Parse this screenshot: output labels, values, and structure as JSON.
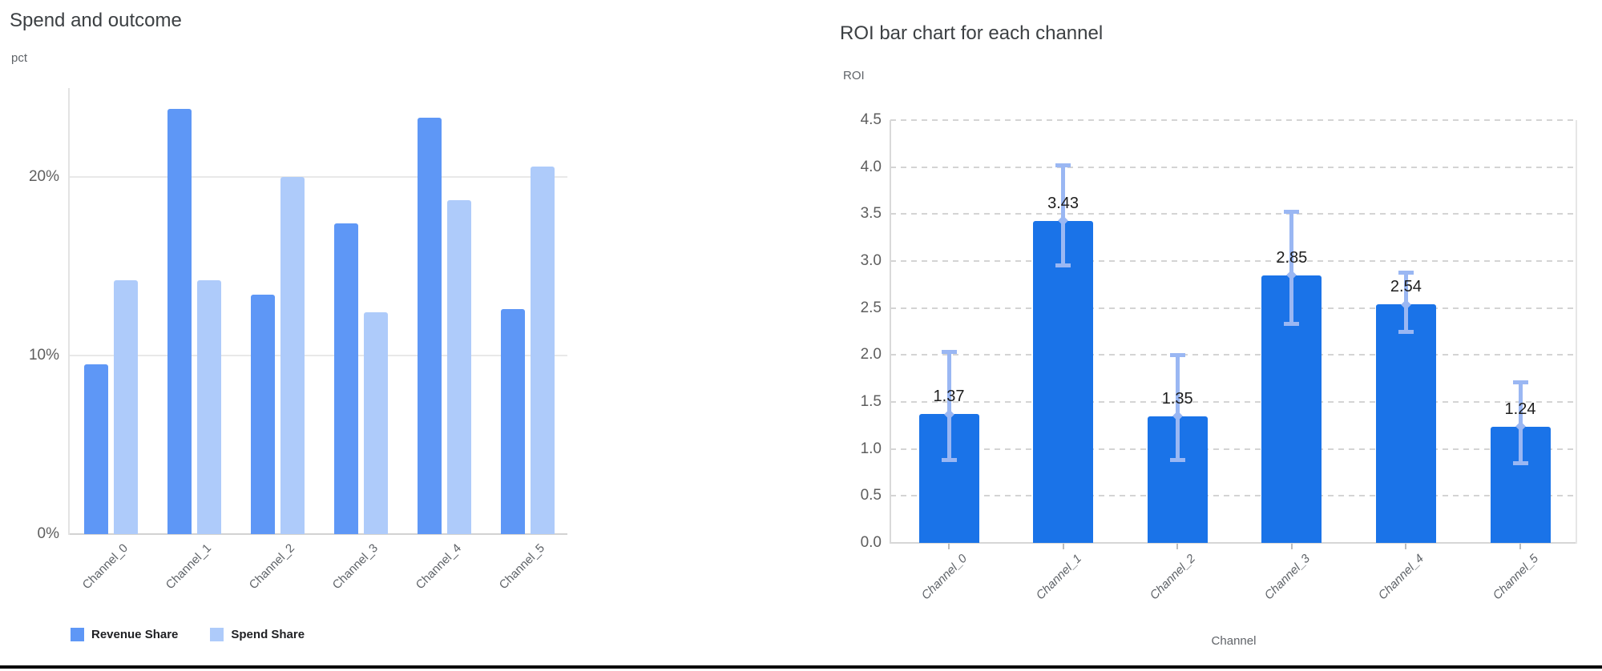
{
  "page": {
    "background": "#ffffff",
    "bottom_border_color": "#040404"
  },
  "chart_data": [
    {
      "type": "bar",
      "title": "Spend and outcome",
      "ylabel": "pct",
      "xlabel": "",
      "categories": [
        "Channel_0",
        "Channel_1",
        "Channel_2",
        "Channel_3",
        "Channel_4",
        "Channel_5"
      ],
      "series": [
        {
          "name": "Revenue Share",
          "color": "#5e97f6",
          "values": [
            9.5,
            23.8,
            13.4,
            17.4,
            23.3,
            12.6
          ]
        },
        {
          "name": "Spend Share",
          "color": "#aecbfa",
          "values": [
            14.2,
            14.2,
            20.0,
            12.4,
            18.7,
            20.6
          ]
        }
      ],
      "y_ticks": [
        0,
        10,
        20
      ],
      "y_tick_labels": [
        "0%",
        "10%",
        "20%"
      ],
      "ylim": [
        0,
        25
      ],
      "grid": "horizontal-solid",
      "legend_position": "bottom",
      "value_format": "percent"
    },
    {
      "type": "bar",
      "title": "ROI bar chart for each channel",
      "ylabel": "ROI",
      "xlabel": "Channel",
      "categories": [
        "Channel_0",
        "Channel_1",
        "Channel_2",
        "Channel_3",
        "Channel_4",
        "Channel_5"
      ],
      "series": [
        {
          "name": "ROI",
          "color": "#1a73e8",
          "values": [
            1.37,
            3.43,
            1.35,
            2.85,
            2.54,
            1.24
          ]
        }
      ],
      "value_labels": [
        "1.37",
        "3.43",
        "1.35",
        "2.85",
        "2.54",
        "1.24"
      ],
      "error_bars": {
        "color": "#9ab7f3",
        "low": [
          0.88,
          2.95,
          0.88,
          2.33,
          2.24,
          0.84
        ],
        "high": [
          2.04,
          4.02,
          2.0,
          3.53,
          2.88,
          1.71
        ]
      },
      "y_ticks": [
        0,
        0.5,
        1.0,
        1.5,
        2.0,
        2.5,
        3.0,
        3.5,
        4.0,
        4.5
      ],
      "y_tick_labels": [
        "0.0",
        "0.5",
        "1.0",
        "1.5",
        "2.0",
        "2.5",
        "3.0",
        "3.5",
        "4.0",
        "4.5"
      ],
      "ylim": [
        0,
        4.5
      ],
      "grid": "horizontal-dashed",
      "legend_position": "none"
    }
  ]
}
